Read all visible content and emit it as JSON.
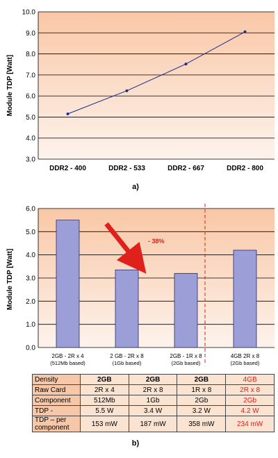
{
  "chart_data": [
    {
      "type": "line",
      "categories": [
        "DDR2 - 400",
        "DDR2 - 533",
        "DDR2 - 667",
        "DDR2 - 800"
      ],
      "series": [
        {
          "values": [
            5.15,
            6.25,
            7.52,
            9.05
          ]
        }
      ],
      "title": "",
      "ylabel": "Module TDP [Watt]",
      "ylim": [
        3.0,
        10.0
      ],
      "yticks": [
        "3.0",
        "4.0",
        "5.0",
        "6.0",
        "7.0",
        "8.0",
        "9.0",
        "10.0"
      ],
      "caption": "a)",
      "grid": true,
      "colors": {
        "line": "#1f2a8c",
        "bg_top": "#f9c7a6",
        "bg_bottom": "#fdf3ec"
      }
    },
    {
      "type": "bar",
      "categories": [
        {
          "line1": "2GB - 2R x 4",
          "line2": "(512Mb based)"
        },
        {
          "line1": "2 GB - 2R x 8",
          "line2": "(1Gb based)"
        },
        {
          "line1": "2GB - 1R x 8",
          "line2": "(2Gb based)"
        },
        {
          "line1": "4GB 2R x 8",
          "line2": "(2Gb based)"
        }
      ],
      "values": [
        5.5,
        3.35,
        3.2,
        4.2
      ],
      "ylabel": "Module TDP [Watt]",
      "ylim": [
        0.0,
        6.0
      ],
      "yticks": [
        "0.0",
        "1.0",
        "2.0",
        "3.0",
        "4.0",
        "5.0",
        "6.0"
      ],
      "annotation": "- 38%",
      "caption": "b)",
      "grid": true,
      "colors": {
        "bar": "#9c9ed8",
        "bar_edge": "#2b2b6a",
        "arrow": "#e0201b",
        "divider": "#e0201b",
        "annotation": "#e0201b"
      }
    }
  ],
  "table": {
    "rows": [
      {
        "label": "Density",
        "values": [
          "2GB",
          "2GB",
          "2GB",
          "4GB"
        ]
      },
      {
        "label": "Raw Card",
        "values": [
          "2R x 4",
          "2R x 8",
          "1R x 8",
          "2R x 8"
        ]
      },
      {
        "label": "Component",
        "values": [
          "512Mb",
          "1Gb",
          "2Gb",
          "2Gb"
        ]
      },
      {
        "label": "TDP -",
        "values": [
          "5.5 W",
          "3.4 W",
          "3.2 W",
          "4.2 W"
        ]
      },
      {
        "label_line1": "TDP – per",
        "label_line2": "component",
        "values": [
          "153 mW",
          "187 mW",
          "358 mW",
          "234 mW"
        ]
      }
    ],
    "highlight_color": "#e0201b"
  }
}
